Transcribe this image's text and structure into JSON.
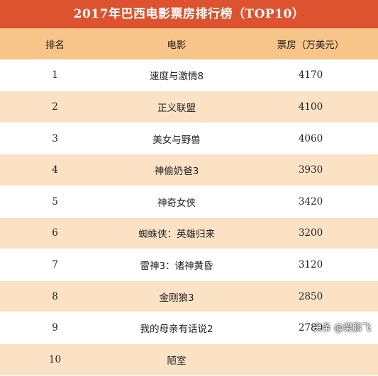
{
  "title": "2017年巴西电影票房排行榜（TOP10）",
  "headers": {
    "rank": "排名",
    "movie": "电影",
    "box": "票房（万美元）"
  },
  "rows": [
    {
      "rank": "1",
      "movie": "速度与激情8",
      "box": "4170"
    },
    {
      "rank": "2",
      "movie": "正义联盟",
      "box": "4100"
    },
    {
      "rank": "3",
      "movie": "美女与野兽",
      "box": "4060"
    },
    {
      "rank": "4",
      "movie": "神偷奶爸3",
      "box": "3930"
    },
    {
      "rank": "5",
      "movie": "神奇女侠",
      "box": "3420"
    },
    {
      "rank": "6",
      "movie": "蜘蛛侠：英雄归来",
      "box": "3200"
    },
    {
      "rank": "7",
      "movie": "雷神3：诸神黄昏",
      "box": "3120"
    },
    {
      "rank": "8",
      "movie": "金刚狼3",
      "box": "2850"
    },
    {
      "rank": "9",
      "movie": "我的母亲有话说2",
      "box": "2780"
    },
    {
      "rank": "10",
      "movie": "陋室",
      "box": ""
    }
  ],
  "footer_tag": "头条 @梁鹏飞"
}
